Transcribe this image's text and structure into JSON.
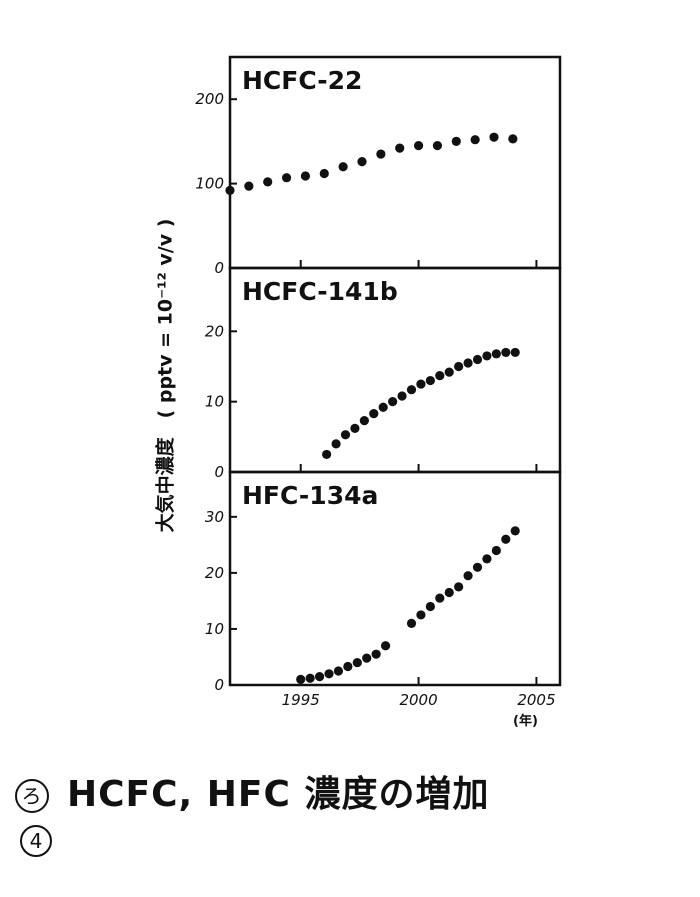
{
  "ylabel": "大気中濃度　( pptv = 10⁻¹² v/v )",
  "x_unit": "(年)",
  "caption": {
    "mark": "ろ",
    "text": "HCFC, HFC 濃度の増加"
  },
  "page_number": "4",
  "chart_data": [
    {
      "type": "scatter",
      "title": "HCFC-22",
      "xlim": [
        1992,
        2006
      ],
      "ylim": [
        0,
        250
      ],
      "yticks": [
        0,
        100,
        200
      ],
      "xticks": [
        1995,
        2000,
        2005
      ],
      "x": [
        1992.0,
        1992.8,
        1993.6,
        1994.4,
        1995.2,
        1996.0,
        1996.8,
        1997.6,
        1998.4,
        1999.2,
        2000.0,
        2000.8,
        2001.6,
        2002.4,
        2003.2,
        2004.0
      ],
      "y": [
        92,
        97,
        102,
        107,
        109,
        112,
        120,
        126,
        135,
        142,
        145,
        145,
        150,
        152,
        155,
        153
      ]
    },
    {
      "type": "scatter",
      "title": "HCFC-141b",
      "xlim": [
        1992,
        2006
      ],
      "ylim": [
        0,
        29
      ],
      "yticks": [
        0,
        10,
        20
      ],
      "xticks": [
        1995,
        2000,
        2005
      ],
      "x": [
        1996.1,
        1996.5,
        1996.9,
        1997.3,
        1997.7,
        1998.1,
        1998.5,
        1998.9,
        1999.3,
        1999.7,
        2000.1,
        2000.5,
        2000.9,
        2001.3,
        2001.7,
        2002.1,
        2002.5,
        2002.9,
        2003.3,
        2003.7,
        2004.1
      ],
      "y": [
        2.5,
        4.0,
        5.3,
        6.2,
        7.3,
        8.3,
        9.2,
        10.0,
        10.8,
        11.7,
        12.5,
        13.0,
        13.7,
        14.2,
        15.0,
        15.5,
        16.0,
        16.5,
        16.8,
        17.0,
        17.0
      ]
    },
    {
      "type": "scatter",
      "title": "HFC-134a",
      "xlim": [
        1992,
        2006
      ],
      "ylim": [
        0,
        38
      ],
      "yticks": [
        0,
        10,
        20,
        30
      ],
      "xticks": [
        1995,
        2000,
        2005
      ],
      "x": [
        1995.0,
        1995.4,
        1995.8,
        1996.2,
        1996.6,
        1997.0,
        1997.4,
        1997.8,
        1998.2,
        1998.6,
        1999.7,
        2000.1,
        2000.5,
        2000.9,
        2001.3,
        2001.7,
        2002.1,
        2002.5,
        2002.9,
        2003.3,
        2003.7,
        2004.1
      ],
      "y": [
        1.0,
        1.2,
        1.5,
        2.0,
        2.5,
        3.3,
        4.0,
        4.8,
        5.5,
        7.0,
        11.0,
        12.5,
        14.0,
        15.5,
        16.5,
        17.5,
        19.5,
        21.0,
        22.5,
        24.0,
        26.0,
        27.5
      ]
    }
  ]
}
